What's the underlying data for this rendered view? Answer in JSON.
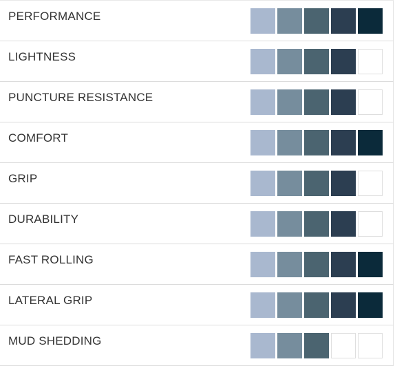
{
  "max_rating": 5,
  "level_colors": [
    "#a9b8cf",
    "#768d9d",
    "#4b6470",
    "#2c3e51",
    "#0b2a3a"
  ],
  "empty_color": "#ffffff",
  "rows": [
    {
      "label": "PERFORMANCE",
      "rating": 5
    },
    {
      "label": "LIGHTNESS",
      "rating": 4
    },
    {
      "label": "PUNCTURE RESISTANCE",
      "rating": 4
    },
    {
      "label": "COMFORT",
      "rating": 5
    },
    {
      "label": "GRIP",
      "rating": 4
    },
    {
      "label": "DURABILITY",
      "rating": 4
    },
    {
      "label": "FAST ROLLING",
      "rating": 5
    },
    {
      "label": "LATERAL GRIP",
      "rating": 5
    },
    {
      "label": "MUD SHEDDING",
      "rating": 3
    }
  ]
}
